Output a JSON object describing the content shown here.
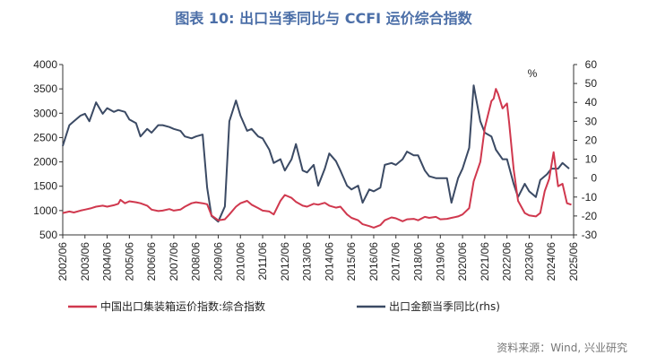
{
  "chart_data": {
    "type": "line",
    "title": "图表 10: 出口当季同比与 CCFI 运价综合指数",
    "source": "资料来源：Wind, 兴业研究",
    "left_axis": {
      "ylim": [
        500,
        4000
      ],
      "ticks": [
        "500",
        "1000",
        "1500",
        "2000",
        "2500",
        "3000",
        "3500",
        "4000"
      ]
    },
    "right_axis": {
      "ylim": [
        -30,
        60
      ],
      "ticks": [
        "-30",
        "-20",
        "-10",
        "0",
        "10",
        "20",
        "30",
        "40",
        "50",
        "60"
      ],
      "unit": "%"
    },
    "x_range": [
      2002.5,
      2025.5
    ],
    "x_ticks": [
      "2002/06",
      "2003/06",
      "2004/06",
      "2005/06",
      "2006/06",
      "2007/06",
      "2008/06",
      "2009/06",
      "2010/06",
      "2011/06",
      "2012/06",
      "2013/06",
      "2014/06",
      "2015/06",
      "2016/06",
      "2017/06",
      "2018/06",
      "2019/06",
      "2020/06",
      "2021/06",
      "2022/06",
      "2023/06",
      "2024/06",
      "2025/06"
    ],
    "legend_position": "bottom",
    "colors": {
      "ccfi": "#d0384e",
      "export": "#3b4a64"
    },
    "series": [
      {
        "name": "中国出口集装箱运价指数:综合指数",
        "axis": "left",
        "points": [
          [
            2002.5,
            950
          ],
          [
            2002.8,
            980
          ],
          [
            2003.0,
            960
          ],
          [
            2003.3,
            1000
          ],
          [
            2003.5,
            1020
          ],
          [
            2003.8,
            1050
          ],
          [
            2004.0,
            1080
          ],
          [
            2004.3,
            1100
          ],
          [
            2004.5,
            1080
          ],
          [
            2004.8,
            1110
          ],
          [
            2005.0,
            1140
          ],
          [
            2005.1,
            1220
          ],
          [
            2005.3,
            1150
          ],
          [
            2005.5,
            1190
          ],
          [
            2005.8,
            1170
          ],
          [
            2006.0,
            1150
          ],
          [
            2006.3,
            1100
          ],
          [
            2006.5,
            1020
          ],
          [
            2006.8,
            990
          ],
          [
            2007.0,
            1000
          ],
          [
            2007.3,
            1030
          ],
          [
            2007.5,
            1000
          ],
          [
            2007.8,
            1020
          ],
          [
            2008.0,
            1080
          ],
          [
            2008.3,
            1150
          ],
          [
            2008.5,
            1170
          ],
          [
            2008.8,
            1150
          ],
          [
            2009.0,
            1130
          ],
          [
            2009.2,
            900
          ],
          [
            2009.5,
            800
          ],
          [
            2009.8,
            820
          ],
          [
            2010.0,
            920
          ],
          [
            2010.3,
            1080
          ],
          [
            2010.5,
            1150
          ],
          [
            2010.8,
            1200
          ],
          [
            2011.0,
            1120
          ],
          [
            2011.3,
            1050
          ],
          [
            2011.5,
            1000
          ],
          [
            2011.8,
            980
          ],
          [
            2012.0,
            920
          ],
          [
            2012.3,
            1200
          ],
          [
            2012.5,
            1320
          ],
          [
            2012.8,
            1260
          ],
          [
            2013.0,
            1180
          ],
          [
            2013.3,
            1100
          ],
          [
            2013.5,
            1080
          ],
          [
            2013.8,
            1140
          ],
          [
            2014.0,
            1120
          ],
          [
            2014.3,
            1160
          ],
          [
            2014.5,
            1100
          ],
          [
            2014.8,
            1060
          ],
          [
            2015.0,
            1080
          ],
          [
            2015.3,
            920
          ],
          [
            2015.5,
            850
          ],
          [
            2015.8,
            800
          ],
          [
            2016.0,
            720
          ],
          [
            2016.3,
            680
          ],
          [
            2016.5,
            650
          ],
          [
            2016.8,
            700
          ],
          [
            2017.0,
            800
          ],
          [
            2017.3,
            860
          ],
          [
            2017.5,
            840
          ],
          [
            2017.8,
            780
          ],
          [
            2018.0,
            820
          ],
          [
            2018.3,
            830
          ],
          [
            2018.5,
            800
          ],
          [
            2018.8,
            870
          ],
          [
            2019.0,
            850
          ],
          [
            2019.3,
            870
          ],
          [
            2019.5,
            820
          ],
          [
            2019.8,
            830
          ],
          [
            2020.0,
            850
          ],
          [
            2020.3,
            880
          ],
          [
            2020.5,
            920
          ],
          [
            2020.8,
            1050
          ],
          [
            2021.0,
            1600
          ],
          [
            2021.3,
            2000
          ],
          [
            2021.5,
            2700
          ],
          [
            2021.8,
            3250
          ],
          [
            2021.9,
            3300
          ],
          [
            2022.0,
            3500
          ],
          [
            2022.1,
            3400
          ],
          [
            2022.3,
            3100
          ],
          [
            2022.5,
            3200
          ],
          [
            2022.6,
            2800
          ],
          [
            2022.8,
            1850
          ],
          [
            2023.0,
            1200
          ],
          [
            2023.3,
            950
          ],
          [
            2023.5,
            900
          ],
          [
            2023.8,
            880
          ],
          [
            2024.0,
            950
          ],
          [
            2024.2,
            1400
          ],
          [
            2024.4,
            1650
          ],
          [
            2024.6,
            2200
          ],
          [
            2024.8,
            1500
          ],
          [
            2025.0,
            1550
          ],
          [
            2025.2,
            1150
          ],
          [
            2025.4,
            1120
          ]
        ]
      },
      {
        "name": "出口金额当季同比(rhs)",
        "axis": "right",
        "points": [
          [
            2002.5,
            17
          ],
          [
            2002.8,
            28
          ],
          [
            2003.0,
            30
          ],
          [
            2003.3,
            33
          ],
          [
            2003.5,
            34
          ],
          [
            2003.7,
            30
          ],
          [
            2004.0,
            40
          ],
          [
            2004.3,
            34
          ],
          [
            2004.5,
            37
          ],
          [
            2004.8,
            35
          ],
          [
            2005.0,
            36
          ],
          [
            2005.3,
            35
          ],
          [
            2005.5,
            31
          ],
          [
            2005.8,
            29
          ],
          [
            2006.0,
            22
          ],
          [
            2006.3,
            26
          ],
          [
            2006.5,
            24
          ],
          [
            2006.8,
            28
          ],
          [
            2007.0,
            28
          ],
          [
            2007.3,
            27
          ],
          [
            2007.5,
            26
          ],
          [
            2007.8,
            25
          ],
          [
            2008.0,
            22
          ],
          [
            2008.3,
            21
          ],
          [
            2008.5,
            22
          ],
          [
            2008.8,
            23
          ],
          [
            2009.0,
            -5
          ],
          [
            2009.2,
            -20
          ],
          [
            2009.5,
            -23
          ],
          [
            2009.8,
            -15
          ],
          [
            2010.0,
            30
          ],
          [
            2010.3,
            41
          ],
          [
            2010.5,
            33
          ],
          [
            2010.8,
            25
          ],
          [
            2011.0,
            26
          ],
          [
            2011.3,
            22
          ],
          [
            2011.5,
            21
          ],
          [
            2011.8,
            15
          ],
          [
            2012.0,
            8
          ],
          [
            2012.3,
            10
          ],
          [
            2012.5,
            4
          ],
          [
            2012.8,
            10
          ],
          [
            2013.0,
            18
          ],
          [
            2013.3,
            4
          ],
          [
            2013.5,
            3
          ],
          [
            2013.8,
            7
          ],
          [
            2014.0,
            -4
          ],
          [
            2014.3,
            5
          ],
          [
            2014.5,
            13
          ],
          [
            2014.8,
            9
          ],
          [
            2015.0,
            4
          ],
          [
            2015.3,
            -4
          ],
          [
            2015.5,
            -6
          ],
          [
            2015.8,
            -4
          ],
          [
            2016.0,
            -13
          ],
          [
            2016.3,
            -6
          ],
          [
            2016.5,
            -7
          ],
          [
            2016.8,
            -5
          ],
          [
            2017.0,
            7
          ],
          [
            2017.3,
            8
          ],
          [
            2017.5,
            7
          ],
          [
            2017.8,
            10
          ],
          [
            2018.0,
            14
          ],
          [
            2018.3,
            12
          ],
          [
            2018.5,
            12
          ],
          [
            2018.8,
            4
          ],
          [
            2019.0,
            1
          ],
          [
            2019.3,
            0
          ],
          [
            2019.5,
            0
          ],
          [
            2019.8,
            0
          ],
          [
            2020.0,
            -13
          ],
          [
            2020.3,
            0
          ],
          [
            2020.5,
            5
          ],
          [
            2020.8,
            16
          ],
          [
            2021.0,
            49
          ],
          [
            2021.3,
            30
          ],
          [
            2021.5,
            24
          ],
          [
            2021.8,
            22
          ],
          [
            2022.0,
            15
          ],
          [
            2022.3,
            10
          ],
          [
            2022.5,
            10
          ],
          [
            2022.8,
            -3
          ],
          [
            2023.0,
            -10
          ],
          [
            2023.3,
            -3
          ],
          [
            2023.5,
            -7
          ],
          [
            2023.8,
            -10
          ],
          [
            2024.0,
            -1
          ],
          [
            2024.3,
            2
          ],
          [
            2024.5,
            5
          ],
          [
            2024.8,
            5
          ],
          [
            2025.0,
            8
          ],
          [
            2025.3,
            5
          ]
        ]
      }
    ]
  }
}
